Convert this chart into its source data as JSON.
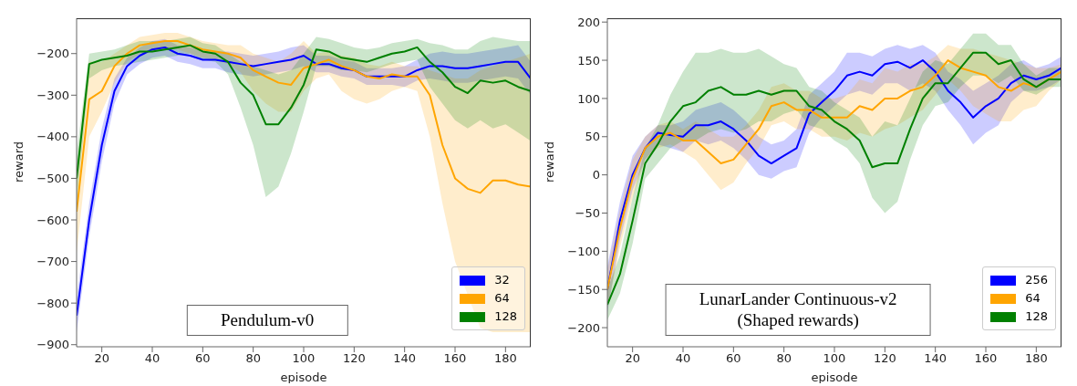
{
  "chart_data": [
    {
      "type": "line",
      "title": "Pendulum-v0",
      "xlabel": "episode",
      "ylabel": "reward",
      "xlim": [
        10,
        190
      ],
      "xticks": [
        20,
        40,
        60,
        80,
        100,
        120,
        140,
        160,
        180
      ],
      "ylim": [
        -905,
        -115
      ],
      "yticks": [
        -900,
        -800,
        -700,
        -600,
        -500,
        -400,
        -300,
        -200
      ],
      "legend": "bottom right",
      "x": [
        10,
        15,
        20,
        25,
        30,
        35,
        40,
        45,
        50,
        55,
        60,
        65,
        70,
        75,
        80,
        85,
        90,
        95,
        100,
        105,
        110,
        115,
        120,
        125,
        130,
        135,
        140,
        145,
        150,
        155,
        160,
        165,
        170,
        175,
        180,
        185,
        190
      ],
      "series": [
        {
          "name": "32",
          "color": "#0000ff",
          "values": [
            -830,
            -600,
            -420,
            -290,
            -230,
            -205,
            -190,
            -185,
            -200,
            -205,
            -215,
            -215,
            -220,
            -225,
            -230,
            -225,
            -220,
            -215,
            -205,
            -225,
            -225,
            -235,
            -240,
            -255,
            -255,
            -255,
            -255,
            -240,
            -230,
            -230,
            -235,
            -235,
            -230,
            -225,
            -220,
            -220,
            -260
          ],
          "lower": [
            -870,
            -640,
            -460,
            -320,
            -250,
            -225,
            -210,
            -205,
            -220,
            -225,
            -235,
            -235,
            -245,
            -250,
            -255,
            -250,
            -245,
            -240,
            -230,
            -245,
            -245,
            -255,
            -260,
            -275,
            -275,
            -275,
            -280,
            -265,
            -260,
            -265,
            -270,
            -270,
            -265,
            -260,
            -255,
            -260,
            -300
          ],
          "upper": [
            -790,
            -560,
            -380,
            -260,
            -210,
            -185,
            -170,
            -165,
            -180,
            -185,
            -195,
            -195,
            -195,
            -200,
            -205,
            -200,
            -195,
            -185,
            -180,
            -205,
            -205,
            -215,
            -220,
            -235,
            -235,
            -235,
            -230,
            -215,
            -200,
            -195,
            -200,
            -200,
            -195,
            -190,
            -185,
            -180,
            -220
          ]
        },
        {
          "name": "64",
          "color": "#ffa500",
          "values": [
            -580,
            -310,
            -290,
            -230,
            -200,
            -180,
            -175,
            -170,
            -170,
            -180,
            -190,
            -195,
            -200,
            -210,
            -240,
            -255,
            -270,
            -275,
            -235,
            -225,
            -215,
            -230,
            -240,
            -255,
            -260,
            -250,
            -255,
            -255,
            -300,
            -420,
            -500,
            -525,
            -535,
            -505,
            -505,
            -515,
            -520
          ],
          "lower": [
            -680,
            -400,
            -340,
            -270,
            -220,
            -200,
            -195,
            -190,
            -190,
            -200,
            -210,
            -215,
            -225,
            -245,
            -290,
            -320,
            -340,
            -340,
            -290,
            -260,
            -250,
            -290,
            -310,
            -320,
            -310,
            -290,
            -280,
            -290,
            -400,
            -560,
            -700,
            -780,
            -860,
            -870,
            -870,
            -870,
            -870
          ],
          "upper": [
            -480,
            -220,
            -220,
            -200,
            -180,
            -160,
            -155,
            -150,
            -150,
            -160,
            -170,
            -175,
            -180,
            -180,
            -200,
            -210,
            -220,
            -200,
            -170,
            -200,
            -195,
            -205,
            -210,
            -225,
            -230,
            -220,
            -230,
            -230,
            -240,
            -250,
            -260,
            -260,
            -240,
            -230,
            -220,
            -210,
            -200
          ]
        },
        {
          "name": "128",
          "color": "#008000",
          "values": [
            -500,
            -225,
            -215,
            -210,
            -205,
            -195,
            -195,
            -190,
            -185,
            -180,
            -195,
            -200,
            -220,
            -270,
            -300,
            -370,
            -370,
            -330,
            -275,
            -190,
            -195,
            -210,
            -215,
            -220,
            -210,
            -200,
            -195,
            -185,
            -220,
            -245,
            -280,
            -295,
            -265,
            -270,
            -265,
            -280,
            -290
          ],
          "lower": [
            -560,
            -260,
            -240,
            -230,
            -225,
            -220,
            -215,
            -210,
            -205,
            -200,
            -215,
            -220,
            -250,
            -330,
            -420,
            -545,
            -520,
            -440,
            -340,
            -230,
            -230,
            -240,
            -240,
            -245,
            -235,
            -225,
            -220,
            -215,
            -280,
            -320,
            -360,
            -380,
            -360,
            -380,
            -370,
            -390,
            -410
          ],
          "upper": [
            -440,
            -200,
            -195,
            -190,
            -180,
            -170,
            -170,
            -170,
            -165,
            -160,
            -175,
            -180,
            -200,
            -220,
            -230,
            -240,
            -250,
            -240,
            -200,
            -160,
            -165,
            -175,
            -185,
            -190,
            -185,
            -175,
            -170,
            -165,
            -175,
            -180,
            -190,
            -190,
            -170,
            -160,
            -165,
            -170,
            -170
          ]
        }
      ]
    },
    {
      "type": "line",
      "title": "LunarLander Continuous-v2\n(Shaped rewards)",
      "xlabel": "episode",
      "ylabel": "reward",
      "xlim": [
        10,
        190
      ],
      "xticks": [
        20,
        40,
        60,
        80,
        100,
        120,
        140,
        160,
        180
      ],
      "ylim": [
        -225,
        205
      ],
      "yticks": [
        -200,
        -150,
        -100,
        -50,
        0,
        50,
        100,
        150,
        200
      ],
      "legend": "bottom right",
      "x": [
        10,
        15,
        20,
        25,
        30,
        35,
        40,
        45,
        50,
        55,
        60,
        65,
        70,
        75,
        80,
        85,
        90,
        95,
        100,
        105,
        110,
        115,
        120,
        125,
        130,
        135,
        140,
        145,
        150,
        155,
        160,
        165,
        170,
        175,
        180,
        185,
        190
      ],
      "series": [
        {
          "name": "256",
          "color": "#0000ff",
          "values": [
            -150,
            -60,
            0,
            35,
            55,
            52,
            50,
            65,
            65,
            70,
            60,
            45,
            25,
            15,
            25,
            35,
            80,
            95,
            110,
            130,
            135,
            130,
            145,
            148,
            140,
            150,
            135,
            110,
            95,
            75,
            90,
            100,
            120,
            130,
            125,
            130,
            140
          ],
          "lower": [
            -180,
            -85,
            -20,
            20,
            40,
            35,
            30,
            45,
            40,
            45,
            35,
            20,
            0,
            -5,
            5,
            10,
            55,
            75,
            90,
            105,
            110,
            105,
            120,
            120,
            110,
            120,
            110,
            85,
            65,
            40,
            55,
            65,
            95,
            110,
            110,
            115,
            125
          ],
          "upper": [
            -120,
            -35,
            25,
            50,
            65,
            65,
            70,
            85,
            90,
            95,
            85,
            70,
            50,
            40,
            45,
            60,
            105,
            120,
            135,
            160,
            160,
            155,
            165,
            170,
            165,
            170,
            160,
            135,
            125,
            110,
            120,
            130,
            145,
            150,
            140,
            145,
            155
          ]
        },
        {
          "name": "64",
          "color": "#ffa500",
          "values": [
            -150,
            -70,
            -5,
            35,
            50,
            55,
            45,
            45,
            30,
            15,
            20,
            40,
            60,
            90,
            95,
            85,
            85,
            75,
            75,
            75,
            90,
            85,
            100,
            100,
            110,
            115,
            130,
            150,
            140,
            135,
            130,
            115,
            110,
            120,
            115,
            125,
            135
          ],
          "lower": [
            -175,
            -95,
            -30,
            20,
            35,
            40,
            30,
            20,
            0,
            -20,
            -10,
            15,
            35,
            65,
            70,
            60,
            60,
            50,
            50,
            45,
            55,
            50,
            60,
            65,
            75,
            85,
            105,
            125,
            110,
            90,
            80,
            70,
            70,
            85,
            90,
            110,
            125
          ],
          "upper": [
            -125,
            -45,
            20,
            50,
            65,
            70,
            60,
            70,
            60,
            50,
            50,
            65,
            85,
            115,
            120,
            110,
            110,
            100,
            100,
            105,
            125,
            120,
            140,
            135,
            145,
            145,
            155,
            170,
            165,
            165,
            160,
            155,
            150,
            145,
            140,
            140,
            145
          ]
        },
        {
          "name": "128",
          "color": "#008000",
          "values": [
            -170,
            -130,
            -60,
            15,
            40,
            70,
            90,
            95,
            110,
            115,
            105,
            105,
            110,
            105,
            110,
            110,
            90,
            85,
            70,
            60,
            45,
            10,
            15,
            15,
            60,
            100,
            120,
            120,
            140,
            160,
            160,
            145,
            150,
            125,
            115,
            125,
            125
          ],
          "lower": [
            -190,
            -155,
            -90,
            -5,
            15,
            35,
            45,
            45,
            55,
            60,
            55,
            60,
            70,
            70,
            80,
            85,
            65,
            60,
            45,
            35,
            15,
            -30,
            -50,
            -35,
            20,
            65,
            90,
            95,
            115,
            130,
            130,
            120,
            130,
            110,
            105,
            115,
            115
          ],
          "upper": [
            -150,
            -105,
            -30,
            35,
            65,
            105,
            135,
            160,
            160,
            165,
            160,
            160,
            165,
            155,
            145,
            140,
            115,
            110,
            95,
            85,
            75,
            50,
            70,
            65,
            100,
            135,
            150,
            145,
            165,
            185,
            185,
            170,
            170,
            145,
            130,
            140,
            140
          ]
        }
      ]
    }
  ]
}
